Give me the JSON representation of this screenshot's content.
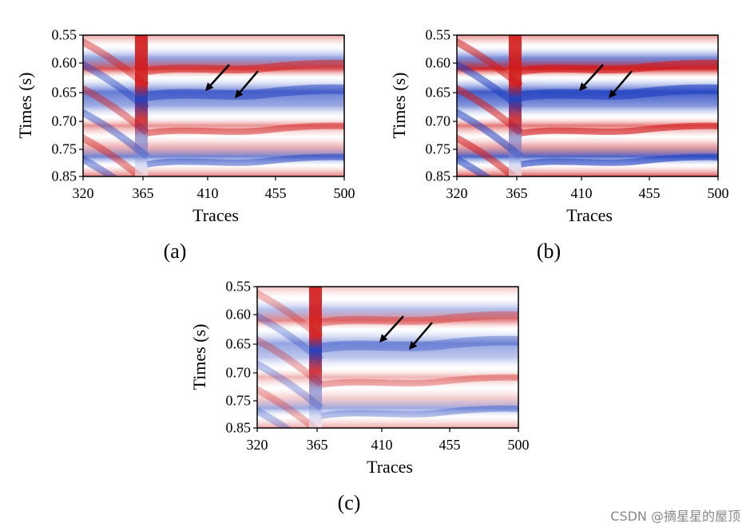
{
  "figure": {
    "panels": [
      {
        "id": "a",
        "caption": "(a)",
        "style": "moderate"
      },
      {
        "id": "b",
        "caption": "(b)",
        "style": "strong"
      },
      {
        "id": "c",
        "caption": "(c)",
        "style": "light"
      }
    ],
    "ylabel": "Times (s)",
    "xlabel": "Traces",
    "yticks": [
      "0.55",
      "0.60",
      "0.65",
      "0.70",
      "0.75",
      "0.85"
    ],
    "xticks": [
      "320",
      "365",
      "410",
      "455",
      "500"
    ],
    "colormap": {
      "negative": "#1f3fbf",
      "zero": "#ffffff",
      "positive": "#d21919"
    }
  },
  "watermark": "CSDN @摘星星的屋顶"
}
